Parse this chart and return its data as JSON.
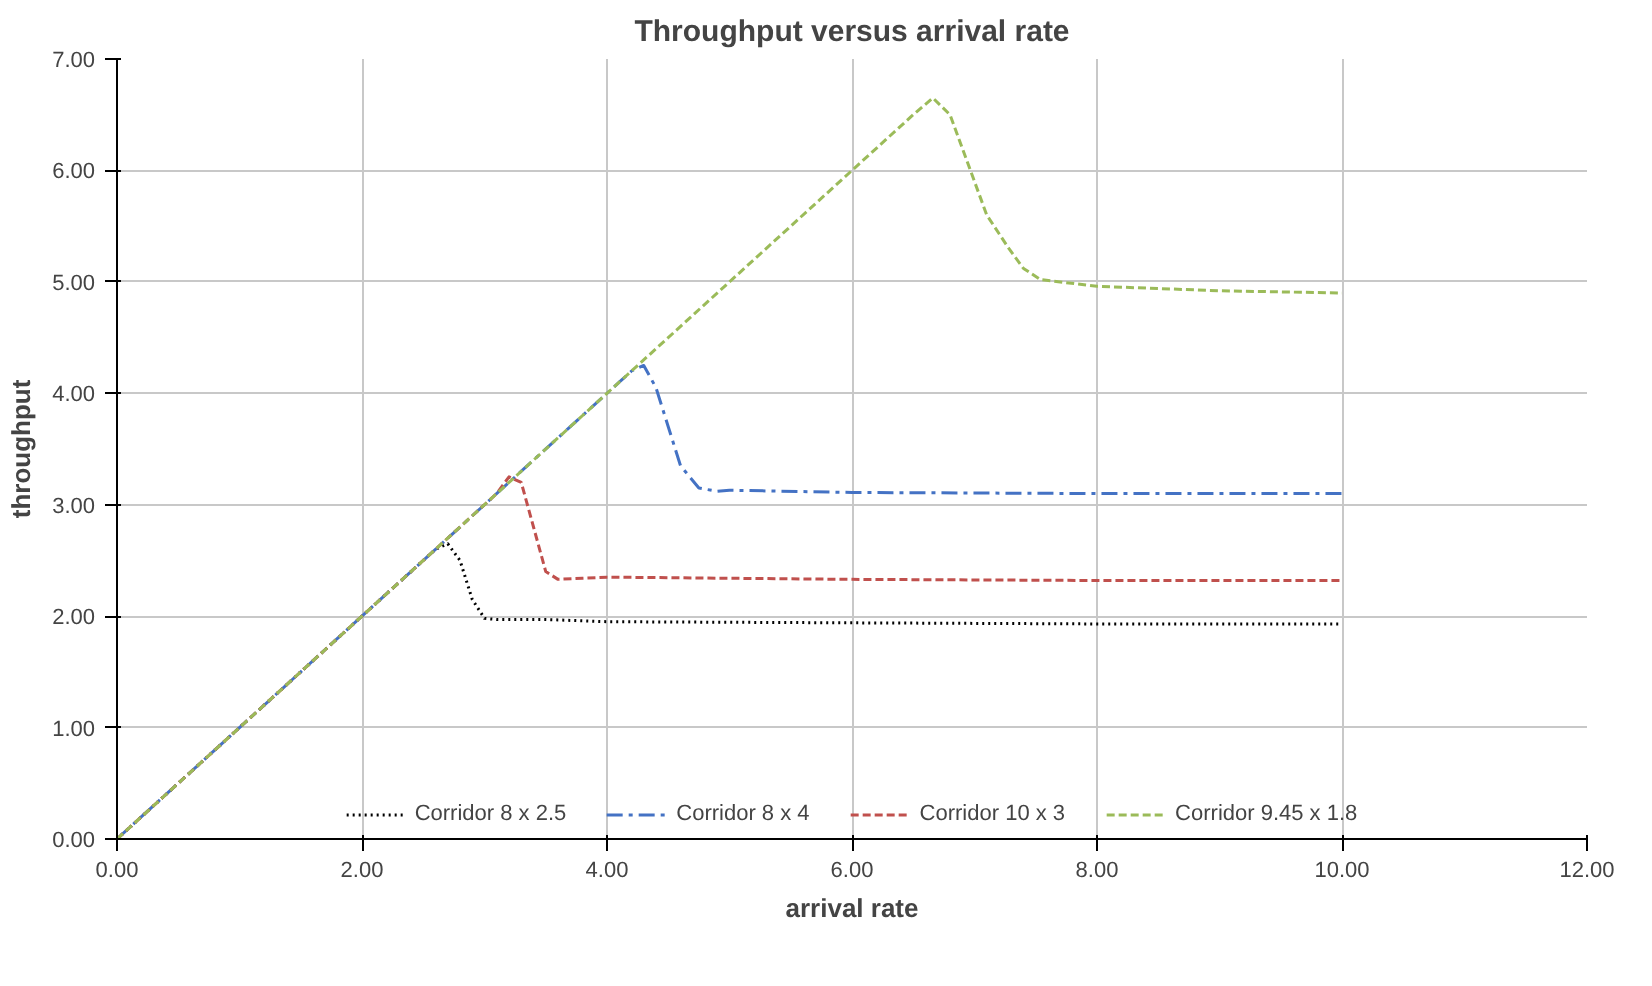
{
  "chart_data": {
    "type": "line",
    "title": "Throughput versus arrival rate",
    "xlabel": "arrival rate",
    "ylabel": "throughput",
    "xlim": [
      0,
      12
    ],
    "ylim": [
      0,
      7
    ],
    "xticks": [
      {
        "value": 0,
        "label": "0.00"
      },
      {
        "value": 2,
        "label": "2.00"
      },
      {
        "value": 4,
        "label": "4.00"
      },
      {
        "value": 6,
        "label": "6.00"
      },
      {
        "value": 8,
        "label": "8.00"
      },
      {
        "value": 10,
        "label": "10.00"
      },
      {
        "value": 12,
        "label": "12.00"
      }
    ],
    "yticks": [
      {
        "value": 0,
        "label": "0.00"
      },
      {
        "value": 1,
        "label": "1.00"
      },
      {
        "value": 2,
        "label": "2.00"
      },
      {
        "value": 3,
        "label": "3.00"
      },
      {
        "value": 4,
        "label": "4.00"
      },
      {
        "value": 5,
        "label": "5.00"
      },
      {
        "value": 6,
        "label": "6.00"
      },
      {
        "value": 7,
        "label": "7.00"
      }
    ],
    "grid": true,
    "legend": "bottom",
    "marker": "none",
    "series": [
      {
        "name": "Corridor 8 x 2.5",
        "color": "#000000",
        "line_style": "dotted",
        "x": [
          0,
          2.6,
          2.7,
          2.8,
          2.9,
          3.0,
          3.1,
          3.5,
          4,
          6,
          8,
          10
        ],
        "values": [
          0,
          2.6,
          2.65,
          2.5,
          2.15,
          1.98,
          1.97,
          1.97,
          1.95,
          1.94,
          1.93,
          1.93
        ]
      },
      {
        "name": "Corridor 8 x 4",
        "color": "#4472c4",
        "line_style": "dashdot",
        "x": [
          0,
          4.1,
          4.2,
          4.3,
          4.4,
          4.5,
          4.6,
          4.75,
          4.9,
          5,
          6,
          8,
          10
        ],
        "values": [
          0,
          4.1,
          4.2,
          4.25,
          4.05,
          3.7,
          3.35,
          3.15,
          3.12,
          3.13,
          3.11,
          3.1,
          3.1
        ]
      },
      {
        "name": "Corridor 10 x 3",
        "color": "#c0504d",
        "line_style": "dashed",
        "x": [
          0,
          3.1,
          3.2,
          3.3,
          3.4,
          3.5,
          3.6,
          3.8,
          4,
          6,
          8,
          10
        ],
        "values": [
          0,
          3.1,
          3.25,
          3.2,
          2.8,
          2.4,
          2.33,
          2.34,
          2.35,
          2.33,
          2.32,
          2.32
        ]
      },
      {
        "name": "Corridor 9.45 x 1.8",
        "color": "#9bbb59",
        "line_style": "dashed",
        "x": [
          0,
          6.5,
          6.66,
          6.8,
          7.0,
          7.1,
          7.28,
          7.4,
          7.54,
          8,
          9,
          10
        ],
        "values": [
          0,
          6.5,
          6.65,
          6.5,
          5.9,
          5.6,
          5.3,
          5.12,
          5.02,
          4.96,
          4.92,
          4.9
        ]
      }
    ]
  }
}
